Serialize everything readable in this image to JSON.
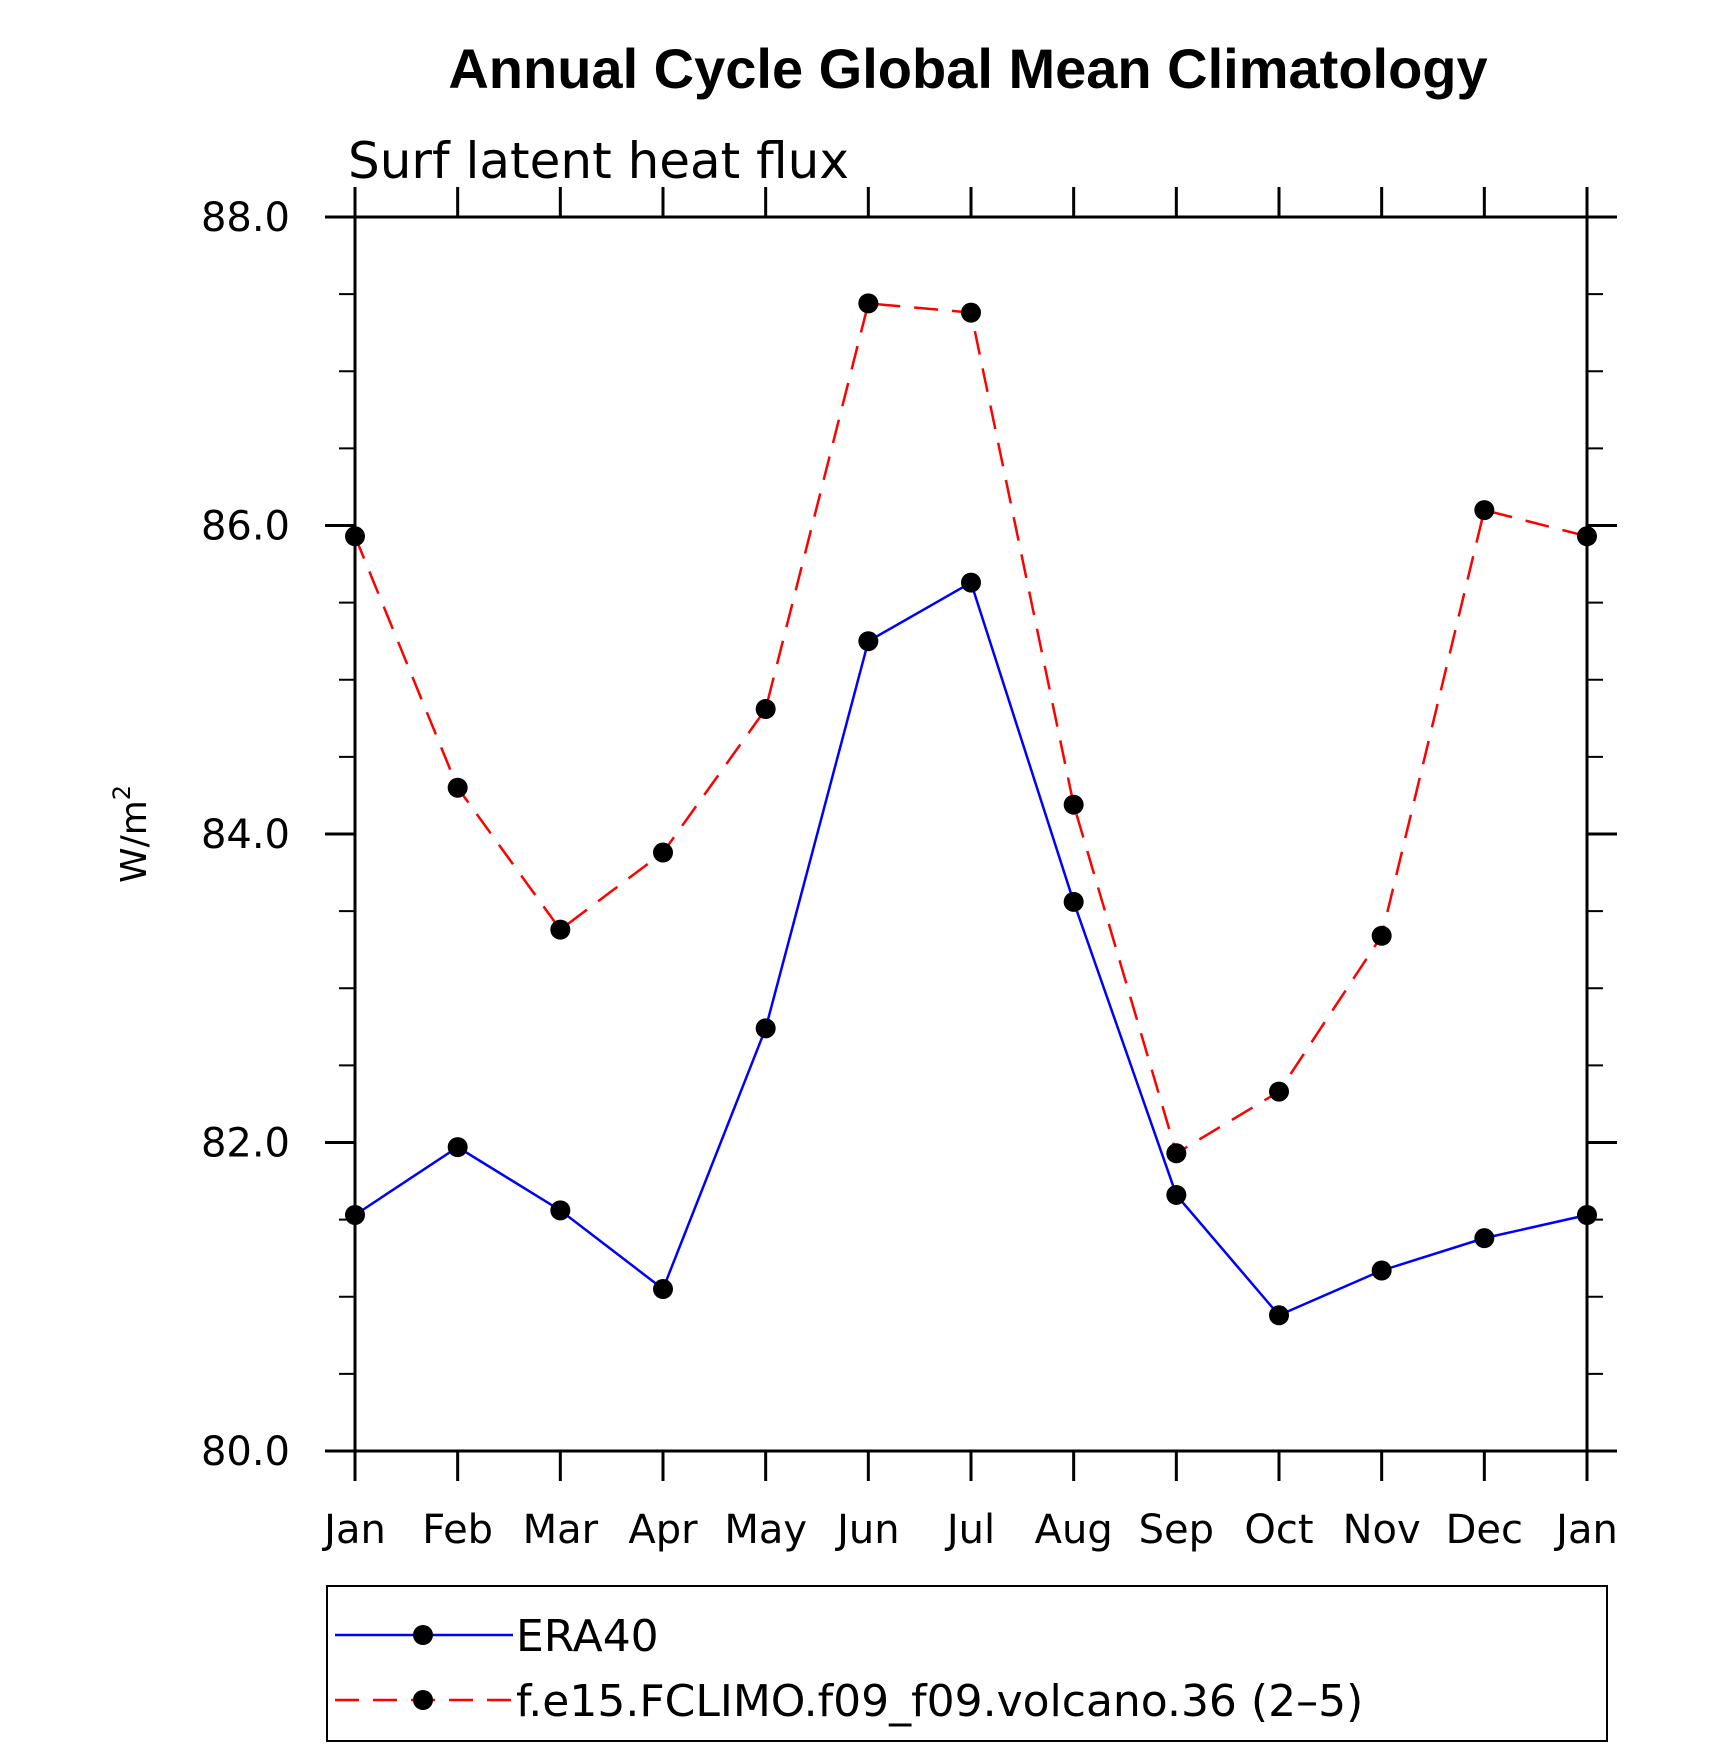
{
  "chart_data": {
    "type": "line",
    "title": "Annual Cycle Global Mean Climatology",
    "subtitle": "Surf latent heat flux",
    "ylabel": "W/m",
    "ylabel_superscript": "2",
    "xlabel": "",
    "ylim": [
      80.0,
      88.0
    ],
    "yticks": [
      "80.0",
      "82.0",
      "84.0",
      "86.0",
      "88.0"
    ],
    "categories": [
      "Jan",
      "Feb",
      "Mar",
      "Apr",
      "May",
      "Jun",
      "Jul",
      "Aug",
      "Sep",
      "Oct",
      "Nov",
      "Dec",
      "Jan"
    ],
    "grid": false,
    "legend_position": "bottom",
    "series": [
      {
        "name": "ERA40",
        "color": "#0000ff",
        "dash": "solid",
        "marker": "filled-circle",
        "values": [
          81.53,
          81.97,
          81.56,
          81.05,
          82.74,
          85.25,
          85.63,
          83.56,
          81.66,
          80.88,
          81.17,
          81.38,
          81.53
        ]
      },
      {
        "name": "f.e15.FCLIMO.f09_f09.volcano.36 (2–5)",
        "color": "#ff0000",
        "dash": "dashed",
        "marker": "filled-circle",
        "values": [
          85.93,
          84.3,
          83.38,
          83.88,
          84.81,
          87.44,
          87.38,
          84.19,
          81.93,
          82.33,
          83.34,
          86.1,
          85.93
        ]
      }
    ]
  }
}
